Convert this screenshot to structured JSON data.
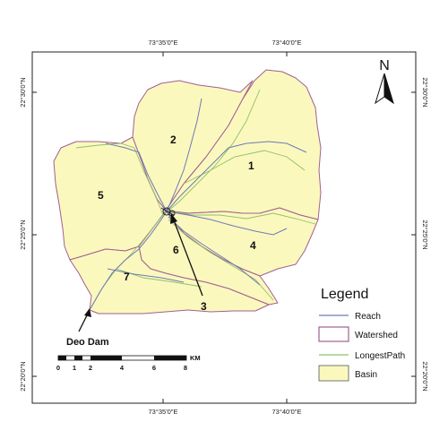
{
  "coords": {
    "top": [
      "73°35'0\"E",
      "73°40'0\"E"
    ],
    "bottom": [
      "73°35'0\"E",
      "73°40'0\"E"
    ],
    "left": [
      "22°30'0\"N",
      "22°25'0\"N",
      "22°20'0\"N"
    ],
    "right": [
      "22°30'0\"N",
      "22°25'0\"N",
      "22°20'0\"N"
    ]
  },
  "north_label": "N",
  "subbasins": [
    "1",
    "2",
    "3",
    "4",
    "5",
    "6",
    "7"
  ],
  "dam_label": "Deo Dam",
  "scale": {
    "ticks": [
      "0",
      "1",
      "2",
      "4",
      "6",
      "8"
    ],
    "unit": "KM"
  },
  "legend": {
    "title": "Legend",
    "items": [
      {
        "label": "Reach",
        "color": "#6b7bb5"
      },
      {
        "label": "Watershed",
        "color": "#a0608f"
      },
      {
        "label": "LongestPath",
        "color": "#8fc06a"
      },
      {
        "label": "Basin",
        "color": "#fbf8be"
      }
    ]
  },
  "colors": {
    "basin_fill": "#fbf8be",
    "watershed": "#a0608f",
    "reach": "#6b7bb5",
    "longest_path": "#8fc06a"
  }
}
